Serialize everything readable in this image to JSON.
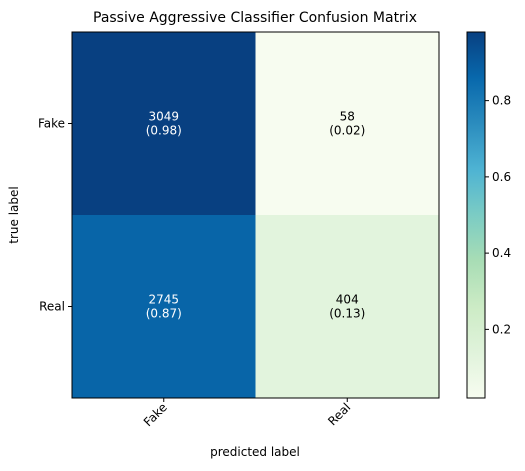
{
  "chart_data": {
    "type": "heatmap",
    "title": "Passive Aggressive Classifier Confusion Matrix",
    "xlabel": "predicted label",
    "ylabel": "true label",
    "x_categories": [
      "Fake",
      "Real"
    ],
    "y_categories": [
      "Fake",
      "Real"
    ],
    "counts": [
      [
        3049,
        58
      ],
      [
        2745,
        404
      ]
    ],
    "normalized": [
      [
        0.98,
        0.02
      ],
      [
        0.87,
        0.13
      ]
    ],
    "cell_labels": [
      [
        "3049\n(0.98)",
        "58\n(0.02)"
      ],
      [
        "2745\n(0.87)",
        "404\n(0.13)"
      ]
    ],
    "colormap": "GnBu",
    "colorbar": {
      "range": [
        0.02,
        0.98
      ],
      "ticks": [
        0.2,
        0.4,
        0.6,
        0.8
      ],
      "tick_labels": [
        "0.2",
        "0.4",
        "0.6",
        "0.8"
      ]
    },
    "grid": false,
    "x_tick_rotation_deg": 45
  }
}
